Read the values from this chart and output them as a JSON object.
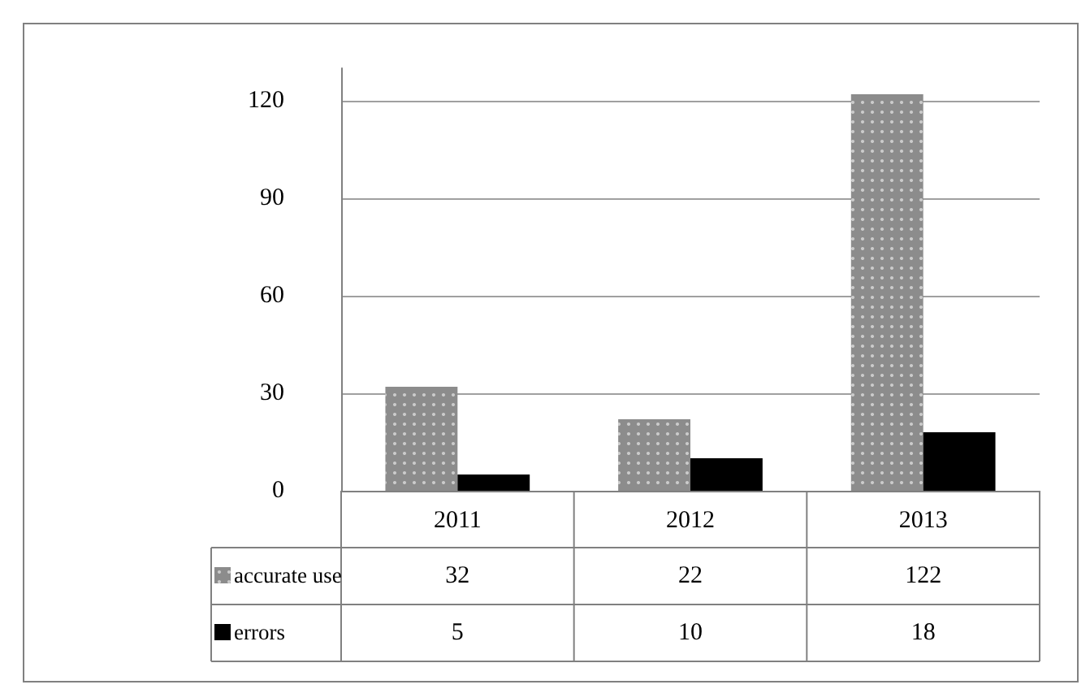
{
  "chart_data": {
    "type": "bar",
    "categories": [
      "2011",
      "2012",
      "2013"
    ],
    "series": [
      {
        "name": "accurate use",
        "color": "#8c8c8c",
        "values": [
          32,
          22,
          122
        ]
      },
      {
        "name": "errors",
        "color": "#000000",
        "values": [
          5,
          10,
          18
        ]
      }
    ],
    "ylim": [
      0,
      130
    ],
    "yticks": [
      0,
      30,
      60,
      90,
      120
    ],
    "grid": "y",
    "legend": "bottom",
    "data_labels": true
  }
}
